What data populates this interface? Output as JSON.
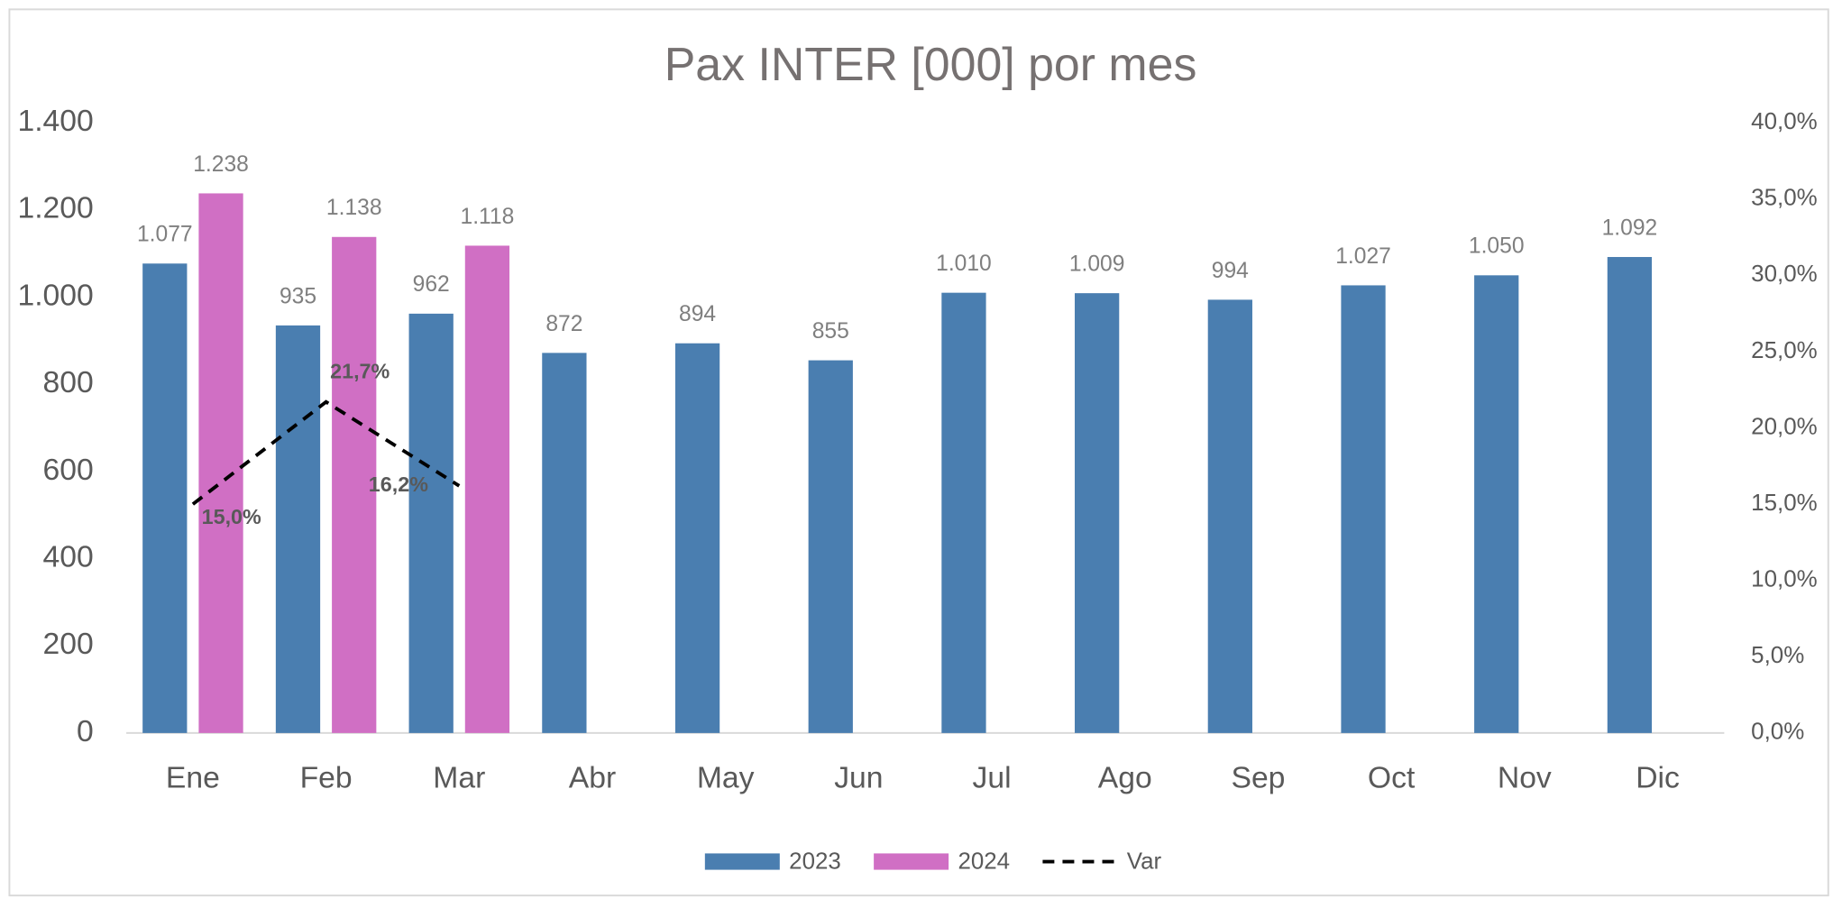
{
  "chart_data": {
    "type": "bar",
    "title": "Pax INTER [000] por mes",
    "categories": [
      "Ene",
      "Feb",
      "Mar",
      "Abr",
      "May",
      "Jun",
      "Jul",
      "Ago",
      "Sep",
      "Oct",
      "Nov",
      "Dic"
    ],
    "series": [
      {
        "name": "2023",
        "color": "#4a7eb0",
        "values": [
          1077,
          935,
          962,
          872,
          894,
          855,
          1010,
          1009,
          994,
          1027,
          1050,
          1092
        ],
        "value_labels": [
          "1.077",
          "935",
          "962",
          "872",
          "894",
          "855",
          "1.010",
          "1.009",
          "994",
          "1.027",
          "1.050",
          "1.092"
        ]
      },
      {
        "name": "2024",
        "color": "#d06fc4",
        "values": [
          1238,
          1138,
          1118,
          null,
          null,
          null,
          null,
          null,
          null,
          null,
          null,
          null
        ],
        "value_labels": [
          "1.238",
          "1.138",
          "1.118",
          null,
          null,
          null,
          null,
          null,
          null,
          null,
          null,
          null
        ]
      },
      {
        "name": "Var",
        "color": "#000000",
        "type": "line",
        "axis": "y2",
        "dashed": true,
        "values": [
          15.0,
          21.7,
          16.2,
          null,
          null,
          null,
          null,
          null,
          null,
          null,
          null,
          null
        ],
        "value_labels": [
          "15,0%",
          "21,7%",
          "16,2%",
          null,
          null,
          null,
          null,
          null,
          null,
          null,
          null,
          null
        ]
      }
    ],
    "ylim": [
      0,
      1400
    ],
    "yticks": [
      0,
      {
        "value": 200,
        "label": "200"
      },
      {
        "value": 400,
        "label": "400"
      },
      {
        "value": 600,
        "label": "600"
      },
      {
        "value": 800,
        "label": "800"
      },
      {
        "value": 1000,
        "label": "1.000"
      },
      {
        "value": 1200,
        "label": "1.200"
      },
      {
        "value": 1400,
        "label": "1.400"
      }
    ],
    "y2lim": [
      0,
      40
    ],
    "y2ticks": [
      {
        "value": 0,
        "label": "0,0%"
      },
      {
        "value": 5,
        "label": "5,0%"
      },
      {
        "value": 10,
        "label": "10,0%"
      },
      {
        "value": 15,
        "label": "15,0%"
      },
      {
        "value": 20,
        "label": "20,0%"
      },
      {
        "value": 25,
        "label": "25,0%"
      },
      {
        "value": 30,
        "label": "30,0%"
      },
      {
        "value": 35,
        "label": "35,0%"
      },
      {
        "value": 40,
        "label": "40,0%"
      }
    ],
    "grid": false,
    "legend": "bottom"
  }
}
